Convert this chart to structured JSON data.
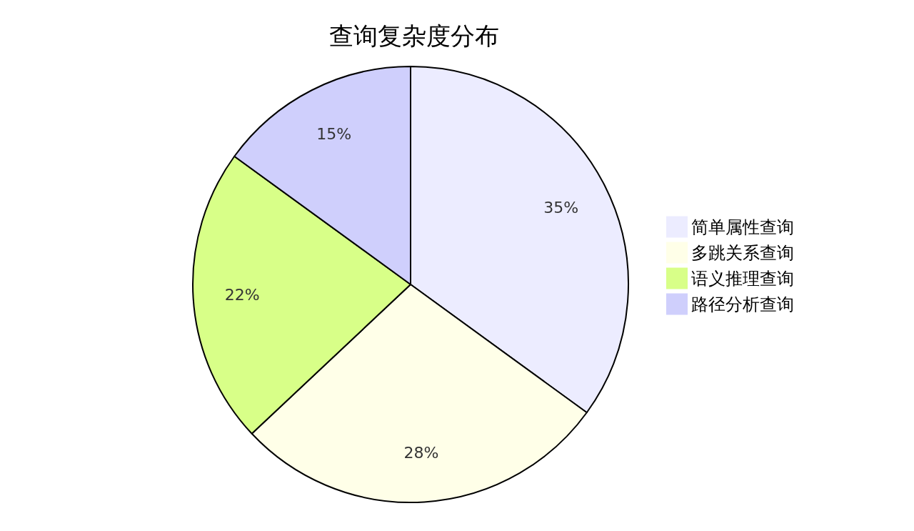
{
  "chart_data": {
    "type": "pie",
    "title": "查询复杂度分布",
    "categories": [
      "简单属性查询",
      "多跳关系查询",
      "语义推理查询",
      "路径分析查询"
    ],
    "values": [
      35,
      28,
      22,
      15
    ],
    "value_labels": [
      "35%",
      "28%",
      "22%",
      "15%"
    ],
    "colors": [
      "#ececff",
      "#ffffe8",
      "#d8ff88",
      "#cfcffc"
    ],
    "legend": "right"
  }
}
